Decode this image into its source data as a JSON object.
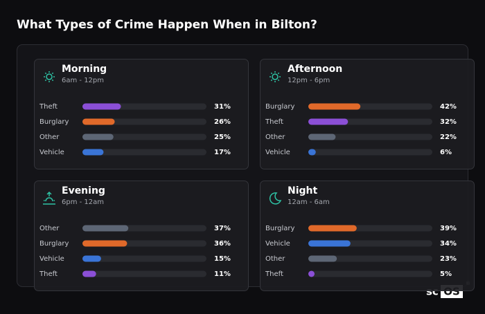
{
  "title": "What Types of Crime Happen When in Bilton?",
  "logo": {
    "prefix": "sc",
    "box": "OS",
    "mark": "®"
  },
  "chart_data": [
    {
      "type": "bar",
      "title": "Morning",
      "subtitle": "6am - 12pm",
      "categories": [
        "Theft",
        "Burglary",
        "Other",
        "Vehicle"
      ],
      "values": [
        31,
        26,
        25,
        17
      ],
      "value_labels": [
        "31%",
        "26%",
        "25%",
        "17%"
      ],
      "colors": [
        "#8b4fd6",
        "#e0692a",
        "#5d6675",
        "#3a74d6"
      ],
      "xlim": [
        0,
        100
      ]
    },
    {
      "type": "bar",
      "title": "Afternoon",
      "subtitle": "12pm - 6pm",
      "categories": [
        "Burglary",
        "Theft",
        "Other",
        "Vehicle"
      ],
      "values": [
        42,
        32,
        22,
        6
      ],
      "value_labels": [
        "42%",
        "32%",
        "22%",
        "6%"
      ],
      "colors": [
        "#e0692a",
        "#8b4fd6",
        "#5d6675",
        "#3a74d6"
      ],
      "xlim": [
        0,
        100
      ]
    },
    {
      "type": "bar",
      "title": "Evening",
      "subtitle": "6pm - 12am",
      "categories": [
        "Other",
        "Burglary",
        "Vehicle",
        "Theft"
      ],
      "values": [
        37,
        36,
        15,
        11
      ],
      "value_labels": [
        "37%",
        "36%",
        "15%",
        "11%"
      ],
      "colors": [
        "#5d6675",
        "#e0692a",
        "#3a74d6",
        "#8b4fd6"
      ],
      "xlim": [
        0,
        100
      ]
    },
    {
      "type": "bar",
      "title": "Night",
      "subtitle": "12am - 6am",
      "categories": [
        "Burglary",
        "Vehicle",
        "Other",
        "Theft"
      ],
      "values": [
        39,
        34,
        23,
        5
      ],
      "value_labels": [
        "39%",
        "34%",
        "23%",
        "5%"
      ],
      "colors": [
        "#e0692a",
        "#3a74d6",
        "#5d6675",
        "#8b4fd6"
      ],
      "xlim": [
        0,
        100
      ]
    }
  ]
}
